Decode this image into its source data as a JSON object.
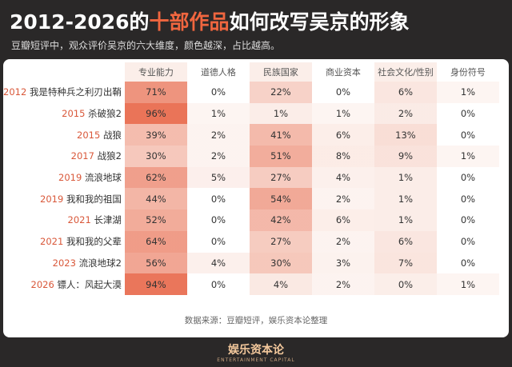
{
  "header": {
    "title_parts": [
      "2012-2026的",
      "十部作品",
      "如何改写吴京的形象"
    ],
    "subtitle": "豆瓣短评中，观众评价吴京的六大维度，颜色越深，占比越高。"
  },
  "table": {
    "columns": [
      "专业能力",
      "道德人格",
      "民族国家",
      "商业资本",
      "社会文化/性别",
      "身份符号"
    ],
    "rows": [
      {
        "year": "2012",
        "film": "我是特种兵之利刃出鞘",
        "cells": [
          "71%",
          "0%",
          "22%",
          "0%",
          "6%",
          "1%"
        ]
      },
      {
        "year": "2015",
        "film": "杀破狼2",
        "cells": [
          "96%",
          "1%",
          "1%",
          "1%",
          "2%",
          "0%"
        ]
      },
      {
        "year": "2015",
        "film": "战狼",
        "cells": [
          "39%",
          "2%",
          "41%",
          "6%",
          "13%",
          "0%"
        ]
      },
      {
        "year": "2017",
        "film": "战狼2",
        "cells": [
          "30%",
          "2%",
          "51%",
          "8%",
          "9%",
          "1%"
        ]
      },
      {
        "year": "2019",
        "film": "流浪地球",
        "cells": [
          "62%",
          "5%",
          "27%",
          "4%",
          "1%",
          "0%"
        ]
      },
      {
        "year": "2019",
        "film": "我和我的祖国",
        "cells": [
          "44%",
          "0%",
          "54%",
          "2%",
          "1%",
          "0%"
        ]
      },
      {
        "year": "2021",
        "film": "长津湖",
        "cells": [
          "52%",
          "0%",
          "42%",
          "6%",
          "1%",
          "0%"
        ]
      },
      {
        "year": "2021",
        "film": "我和我的父辈",
        "cells": [
          "64%",
          "0%",
          "27%",
          "2%",
          "6%",
          "0%"
        ]
      },
      {
        "year": "2023",
        "film": "流浪地球2",
        "cells": [
          "56%",
          "4%",
          "30%",
          "3%",
          "7%",
          "0%"
        ]
      },
      {
        "year": "2026",
        "film": "镖人：风起大漠",
        "cells": [
          "94%",
          "0%",
          "4%",
          "2%",
          "0%",
          "1%"
        ]
      }
    ]
  },
  "source": "数据来源：豆瓣短评，娱乐资本论整理",
  "footer": {
    "logo": "娱乐资本论",
    "logo_en": "ENTERTAINMENT CAPITAL"
  }
}
